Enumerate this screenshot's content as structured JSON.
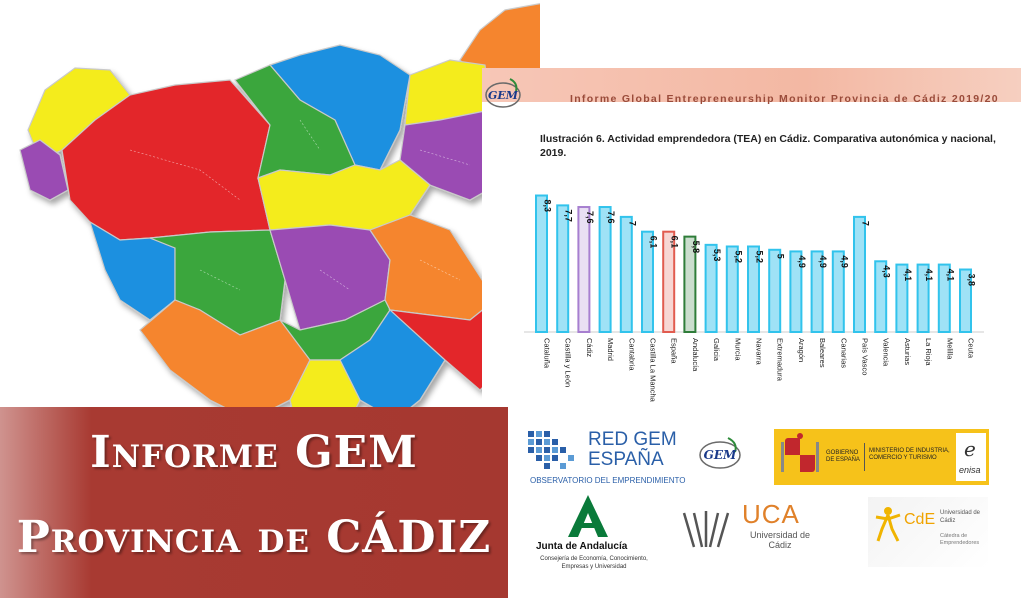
{
  "report": {
    "header": "Informe Global Entrepreneurship Monitor Provincia de Cádiz 2019/20",
    "gem_logo_text": "GEM"
  },
  "chart_data": {
    "type": "bar",
    "title": "Ilustración 6. Actividad emprendedora (TEA) en Cádiz. Comparativa autonómica y nacional, 2019.",
    "categories": [
      "Cataluña",
      "Castilla y León",
      "Cádiz",
      "Madrid",
      "Cantabria",
      "Castilla La Mancha",
      "España",
      "Andalucía",
      "Galicia",
      "Murcia",
      "Navarra",
      "Extremadura",
      "Aragón",
      "Baleares",
      "Canarias",
      "País Vasco",
      "Valencia",
      "Asturias",
      "La Rioja",
      "Melilla",
      "Ceuta"
    ],
    "values": [
      8.3,
      7.7,
      7.6,
      7.6,
      7,
      6.1,
      6.1,
      5.8,
      5.3,
      5.2,
      5.2,
      5,
      4.9,
      4.9,
      4.9,
      7,
      4.3,
      4.1,
      4.1,
      4.1,
      3.8
    ],
    "value_labels": [
      "8,3",
      "7,7",
      "7,6",
      "7,6",
      "7",
      "6,1",
      "6,1",
      "5,8",
      "5,3",
      "5,2",
      "5,2",
      "5",
      "4,9",
      "4,9",
      "4,9",
      "7",
      "4,3",
      "4,1",
      "4,1",
      "4,1",
      "3,8"
    ],
    "highlight": {
      "Cádiz": "#a77fd0",
      "España": "#e15b4f",
      "Andalucía": "#2f7d3a"
    },
    "default_color": "#9fe2f6",
    "default_edge": "#31c3ec",
    "ylim": [
      0,
      9
    ],
    "grid": false
  },
  "banner": {
    "line1": "Informe GEM",
    "line2": "Provincia de CÁDIZ"
  },
  "logos": {
    "red_gem": {
      "line1": "RED GEM",
      "line2": "ESPAÑA",
      "sub": "OBSERVATORIO DEL EMPRENDIMIENTO"
    },
    "gem": "GEM",
    "gobierno": {
      "left": "GOBIERNO DE ESPAÑA",
      "right": "MINISTERIO DE INDUSTRIA, COMERCIO Y TURISMO",
      "enisa": "enisa"
    },
    "junta": {
      "name": "Junta de Andalucía",
      "sub": "Consejería de Economía, Conocimiento, Empresas y Universidad"
    },
    "uca": {
      "name": "UCA",
      "sub": "Universidad de Cádiz"
    },
    "cde": {
      "name": "CdE",
      "right": "Universidad de Cádiz",
      "sub": "Cátedra de Emprendedores"
    }
  },
  "colors": {
    "banner": "#a83a32",
    "purple": "#9a4bb3",
    "red": "#e3262a",
    "green": "#3aa63c",
    "blue": "#1e90e0",
    "yellow": "#f4ec1a",
    "orange": "#f5852d"
  }
}
